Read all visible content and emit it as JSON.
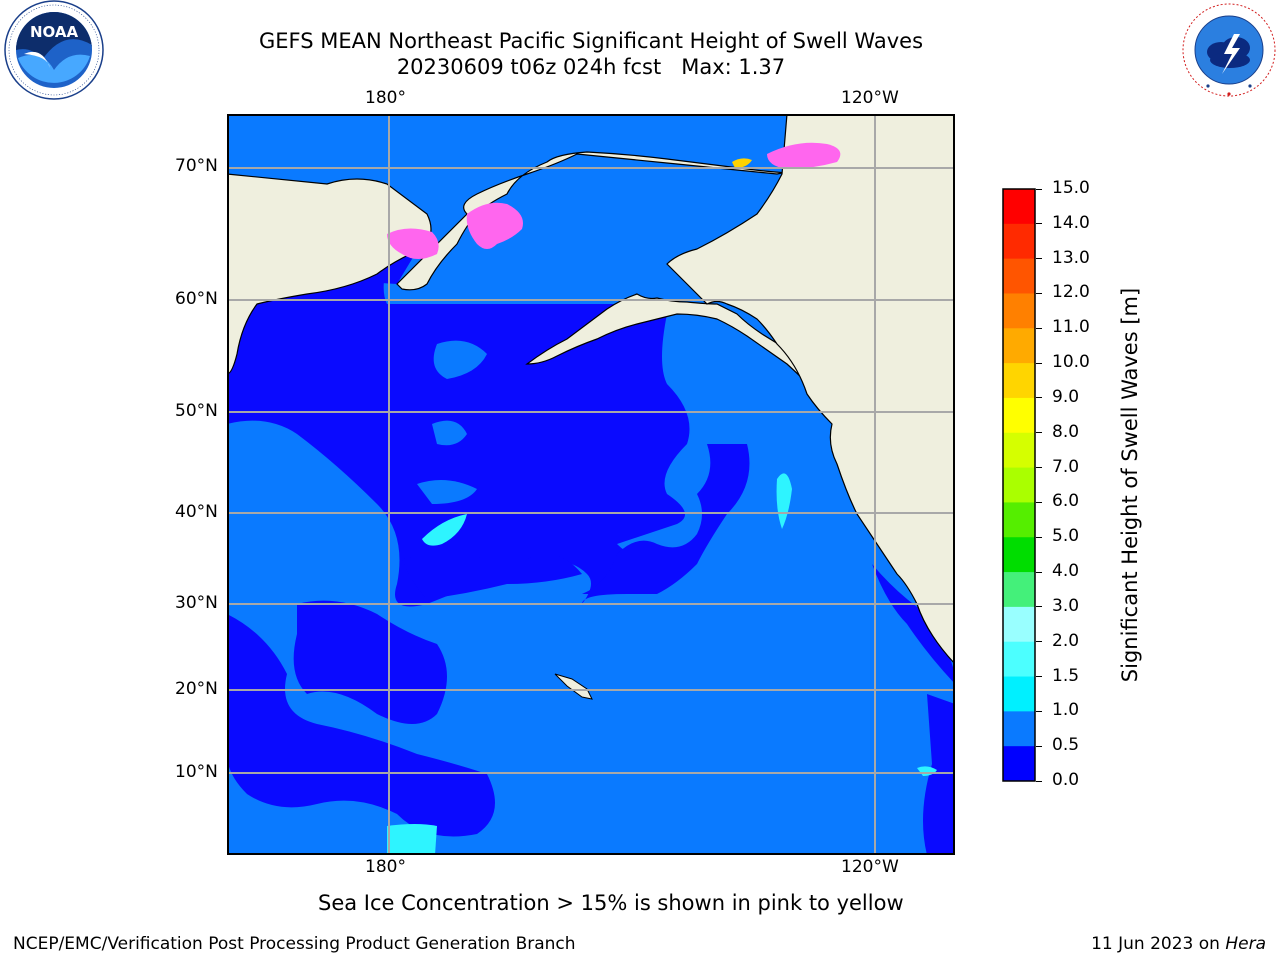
{
  "header": {
    "title_line1": "GEFS MEAN Northeast Pacific Significant Height of Swell Waves",
    "title_line2": "20230609 t06z 024h fcst   Max: 1.37"
  },
  "logos": {
    "left": {
      "name": "NOAA",
      "ring_text": "NATIONAL OCEANIC AND ATMOSPHERIC ADMINISTRATION · U.S. DEPARTMENT OF COMMERCE"
    },
    "right": {
      "name": "NATIONAL WEATHER SERVICE"
    }
  },
  "map": {
    "region": "Northeast Pacific",
    "projection": "equidistant",
    "lon_ticks": {
      "top": [
        "180°",
        "120°W"
      ],
      "bottom": [
        "180°",
        "120°W"
      ]
    },
    "lat_ticks": [
      "70°N",
      "60°N",
      "50°N",
      "40°N",
      "30°N",
      "20°N",
      "10°N"
    ],
    "gridlines": true,
    "colors": {
      "ocean_low": "#0a0aff",
      "ocean_mid": "#0a7aff",
      "cyan": "#2ef4ff",
      "land": "#efefde",
      "ice": "#ff66ee",
      "grid": "#a8a8a8"
    }
  },
  "colorbar": {
    "label": "Significant Height of Swell Waves [m]",
    "ticks": [
      "15.0",
      "14.0",
      "13.0",
      "12.0",
      "11.0",
      "10.0",
      "9.0",
      "8.0",
      "7.0",
      "6.0",
      "5.0",
      "4.0",
      "3.0",
      "2.0",
      "1.5",
      "1.0",
      "0.5",
      "0.0"
    ],
    "colors_top_to_bottom": [
      "#ff0000",
      "#ff2a00",
      "#ff5500",
      "#ff8000",
      "#ffaa00",
      "#ffd500",
      "#ffff00",
      "#d5ff00",
      "#aaff00",
      "#55ee00",
      "#00dd00",
      "#44f07a",
      "#99ffff",
      "#4cffff",
      "#00f0ff",
      "#0a7aff",
      "#0000ff"
    ]
  },
  "notes": {
    "sea_ice": "Sea Ice Concentration > 15% is shown in pink to yellow"
  },
  "footer": {
    "left": "NCEP/EMC/Verification Post Processing Product Generation Branch",
    "right_prefix": "11 Jun 2023 on ",
    "right_host": "Hera"
  }
}
